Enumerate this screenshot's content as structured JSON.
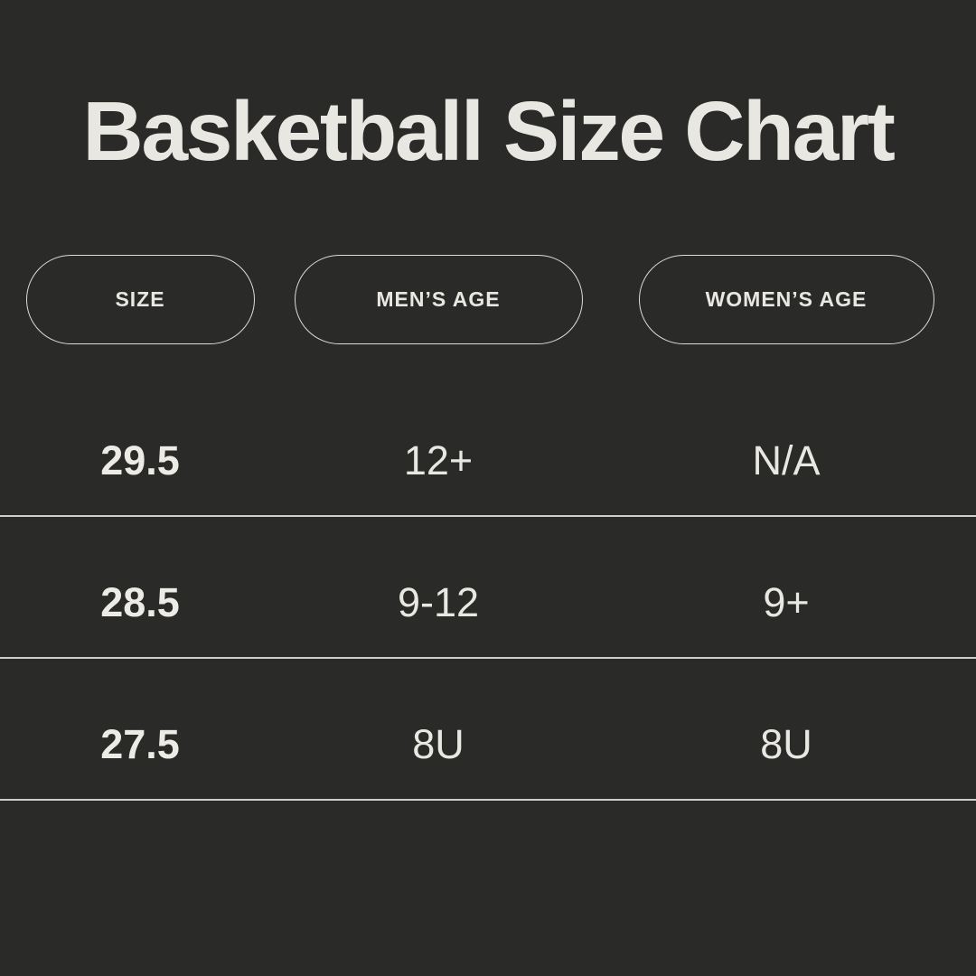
{
  "theme": {
    "background_color": "#2a2a29",
    "text_color": "#e9e7e1",
    "line_color": "#cfcdc8",
    "pill_border_color": "#dddbd5",
    "bold_text_color": "#edebe5"
  },
  "chart_data": {
    "type": "table",
    "title": "Basketball Size Chart",
    "columns": [
      "SIZE",
      "MEN’S AGE",
      "WOMEN’S AGE"
    ],
    "rows": [
      [
        "29.5",
        "12+",
        "N/A"
      ],
      [
        "28.5",
        "9-12",
        "9+"
      ],
      [
        "27.5",
        "8U",
        "8U"
      ]
    ]
  }
}
